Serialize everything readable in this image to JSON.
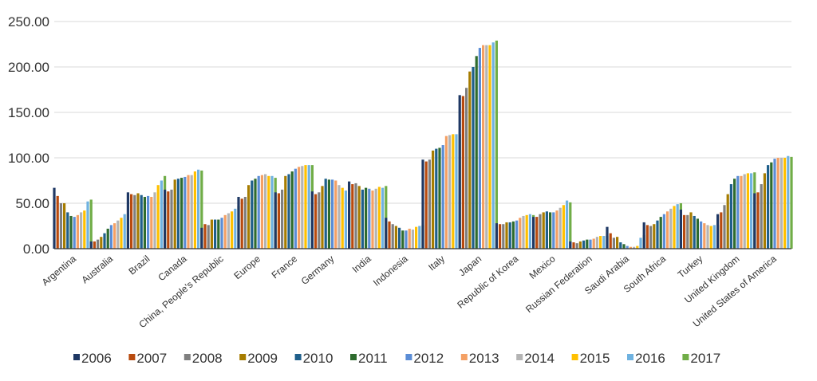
{
  "chart_data": {
    "type": "bar",
    "title": "",
    "xlabel": "",
    "ylabel": "",
    "ylim": [
      0,
      250
    ],
    "yticks": [
      "0.00",
      "50.00",
      "100.00",
      "150.00",
      "200.00",
      "250.00"
    ],
    "grid": "horizontal",
    "legend_position": "bottom",
    "categories": [
      "Argentina",
      "Australia",
      "Brazil",
      "Canada",
      "China, People's Republic",
      "Europe",
      "France",
      "Germany",
      "India",
      "Indonesia",
      "Italy",
      "Japan",
      "Republic of Korea",
      "Mexico",
      "Russian Federation",
      "Saudi Arabia",
      "South Africa",
      "Turkey",
      "United Kingdom",
      "United States of America"
    ],
    "series": [
      {
        "name": "2006",
        "color": "#1f3864",
        "values": [
          67,
          8,
          62,
          65,
          23,
          57,
          62,
          63,
          74,
          34,
          98,
          169,
          28,
          35,
          8,
          24,
          29,
          43,
          38,
          61
        ]
      },
      {
        "name": "2007",
        "color": "#b84a0e",
        "values": [
          58,
          8,
          60,
          63,
          27,
          55,
          61,
          60,
          71,
          30,
          96,
          168,
          27,
          35,
          7,
          17,
          26,
          37,
          40,
          62
        ]
      },
      {
        "name": "2008",
        "color": "#7f7f7f",
        "values": [
          50,
          10,
          59,
          65,
          26,
          57,
          65,
          62,
          72,
          27,
          98,
          177,
          27,
          38,
          6,
          12,
          25,
          37,
          48,
          71
        ]
      },
      {
        "name": "2009",
        "color": "#a67c00",
        "values": [
          50,
          13,
          61,
          76,
          32,
          70,
          80,
          69,
          69,
          25,
          108,
          195,
          29,
          40,
          8,
          13,
          27,
          40,
          60,
          83
        ]
      },
      {
        "name": "2010",
        "color": "#1f5f8b",
        "values": [
          40,
          17,
          59,
          77,
          32,
          75,
          82,
          77,
          65,
          23,
          110,
          200,
          29,
          41,
          9,
          7,
          31,
          36,
          71,
          92
        ]
      },
      {
        "name": "2011",
        "color": "#2e6b2e",
        "values": [
          36,
          22,
          57,
          78,
          32,
          77,
          85,
          76,
          67,
          20,
          111,
          212,
          30,
          40,
          10,
          5,
          35,
          33,
          77,
          95
        ]
      },
      {
        "name": "2012",
        "color": "#5b8dd6",
        "values": [
          35,
          26,
          58,
          79,
          34,
          80,
          88,
          76,
          66,
          20,
          114,
          221,
          31,
          40,
          10,
          3,
          38,
          30,
          80,
          99
        ]
      },
      {
        "name": "2013",
        "color": "#f4a064",
        "values": [
          37,
          28,
          57,
          81,
          37,
          81,
          90,
          75,
          64,
          22,
          124,
          224,
          34,
          42,
          11,
          2,
          41,
          28,
          80,
          100
        ]
      },
      {
        "name": "2014",
        "color": "#b4b4b4",
        "values": [
          40,
          31,
          62,
          81,
          39,
          82,
          91,
          70,
          66,
          21,
          125,
          224,
          36,
          45,
          13,
          2,
          44,
          26,
          82,
          100
        ]
      },
      {
        "name": "2015",
        "color": "#ffc000",
        "values": [
          42,
          34,
          70,
          85,
          41,
          80,
          92,
          67,
          68,
          24,
          126,
          224,
          37,
          48,
          14,
          3,
          47,
          25,
          83,
          100
        ]
      },
      {
        "name": "2016",
        "color": "#6fb2e0",
        "values": [
          52,
          38,
          75,
          87,
          44,
          80,
          92,
          64,
          67,
          25,
          126,
          227,
          38,
          53,
          14,
          12,
          49,
          26,
          83,
          102
        ]
      },
      {
        "name": "2017",
        "color": "#70ad47",
        "values": [
          54,
          38,
          80,
          86,
          47,
          78,
          92,
          62,
          69,
          26,
          126,
          229,
          37,
          51,
          14,
          15,
          50,
          26,
          84,
          101
        ]
      }
    ]
  }
}
